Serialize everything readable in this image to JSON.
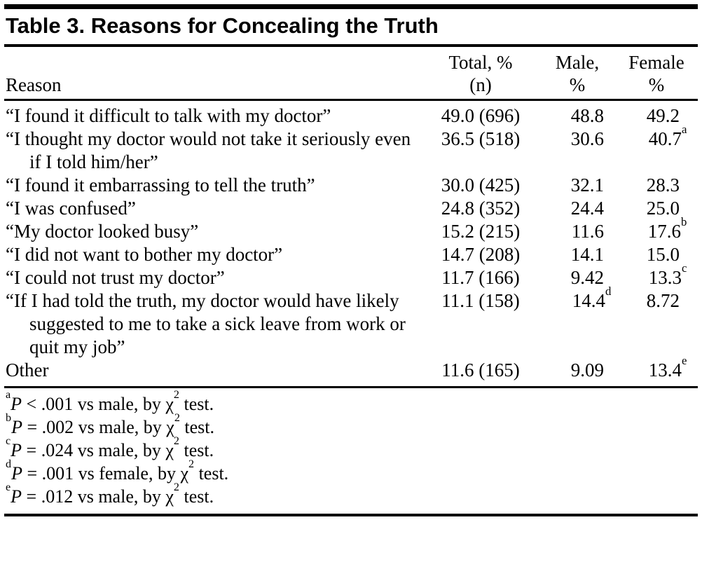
{
  "table": {
    "title": "Table 3. Reasons for Concealing the Truth",
    "columns": {
      "reason": "Reason",
      "total_line1": "Total, %",
      "total_line2": "(n)",
      "male_line1": "Male,",
      "male_line2": "%",
      "female_line1": "Female",
      "female_line2": "%"
    },
    "rows": [
      {
        "reason": "“I found it difficult to talk with my doctor”",
        "total": "49.0 (696)",
        "male": "48.8",
        "male_sup": "",
        "female": "49.2",
        "female_sup": ""
      },
      {
        "reason": "“I thought my doctor would not take it seriously even if I told him/her”",
        "total": "36.5 (518)",
        "male": "30.6",
        "male_sup": "",
        "female": "40.7",
        "female_sup": "a"
      },
      {
        "reason": "“I found it embarrassing to tell the truth”",
        "total": "30.0 (425)",
        "male": "32.1",
        "male_sup": "",
        "female": "28.3",
        "female_sup": ""
      },
      {
        "reason": "“I was confused”",
        "total": "24.8 (352)",
        "male": "24.4",
        "male_sup": "",
        "female": "25.0",
        "female_sup": ""
      },
      {
        "reason": "“My doctor looked busy”",
        "total": "15.2 (215)",
        "male": "11.6",
        "male_sup": "",
        "female": "17.6",
        "female_sup": "b"
      },
      {
        "reason": "“I did not want to bother my doctor”",
        "total": "14.7 (208)",
        "male": "14.1",
        "male_sup": "",
        "female": "15.0",
        "female_sup": ""
      },
      {
        "reason": "“I could not trust my doctor”",
        "total": "11.7 (166)",
        "male": "9.42",
        "male_sup": "",
        "female": "13.3",
        "female_sup": "c"
      },
      {
        "reason": "“If I had told the truth, my doctor would have likely suggested to me to take a sick leave from work or quit my job”",
        "total": "11.1 (158)",
        "male": "14.4",
        "male_sup": "d",
        "female": "8.72",
        "female_sup": ""
      },
      {
        "reason": "Other",
        "total": "11.6 (165)",
        "male": "9.09",
        "male_sup": "",
        "female": "13.4",
        "female_sup": "e"
      }
    ],
    "footnotes": [
      {
        "marker": "a",
        "parts": [
          [
            "i",
            "P"
          ],
          [
            "t",
            " < .001 vs male, by χ"
          ],
          [
            "s",
            "2"
          ],
          [
            "t",
            " test."
          ]
        ]
      },
      {
        "marker": "b",
        "parts": [
          [
            "i",
            "P"
          ],
          [
            "t",
            " = .002 vs male, by χ"
          ],
          [
            "s",
            "2"
          ],
          [
            "t",
            " test."
          ]
        ]
      },
      {
        "marker": "c",
        "parts": [
          [
            "i",
            "P"
          ],
          [
            "t",
            " = .024 vs male, by χ"
          ],
          [
            "s",
            "2"
          ],
          [
            "t",
            " test."
          ]
        ]
      },
      {
        "marker": "d",
        "parts": [
          [
            "i",
            "P"
          ],
          [
            "t",
            " = .001 vs female, by χ"
          ],
          [
            "s",
            "2"
          ],
          [
            "t",
            " test."
          ]
        ]
      },
      {
        "marker": "e",
        "parts": [
          [
            "i",
            "P"
          ],
          [
            "t",
            " = .012 vs male, by χ"
          ],
          [
            "s",
            "2"
          ],
          [
            "t",
            " test."
          ]
        ]
      }
    ]
  }
}
